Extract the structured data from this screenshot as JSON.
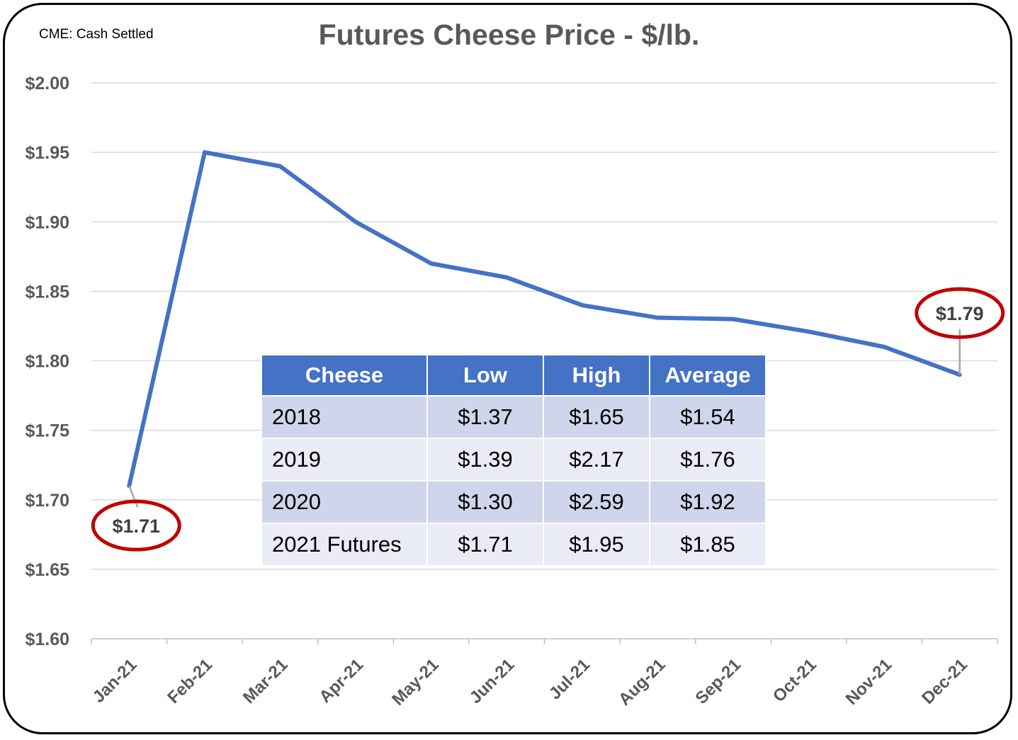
{
  "source_note": "CME: Cash Settled",
  "chart_data": {
    "type": "line",
    "title": "Futures Cheese Price - $/lb.",
    "categories": [
      "Jan-21",
      "Feb-21",
      "Mar-21",
      "Apr-21",
      "May-21",
      "Jun-21",
      "Jul-21",
      "Aug-21",
      "Sep-21",
      "Oct-21",
      "Nov-21",
      "Dec-21"
    ],
    "series": [
      {
        "name": "2021 Futures",
        "color": "#4472c4",
        "values": [
          1.71,
          1.95,
          1.94,
          1.9,
          1.87,
          1.86,
          1.84,
          1.831,
          1.83,
          1.821,
          1.81,
          1.79
        ]
      }
    ],
    "ylim": [
      1.6,
      2.0
    ],
    "yticks": [
      1.6,
      1.65,
      1.7,
      1.75,
      1.8,
      1.85,
      1.9,
      1.95,
      2.0
    ],
    "ytick_labels": [
      "$1.60",
      "$1.65",
      "$1.70",
      "$1.75",
      "$1.80",
      "$1.85",
      "$1.90",
      "$1.95",
      "$2.00"
    ],
    "grid": true,
    "annotations": [
      {
        "label": "$1.71",
        "category_index": 0,
        "value": 1.71,
        "circle_color": "#c00000"
      },
      {
        "label": "$1.79",
        "category_index": 11,
        "value": 1.79,
        "circle_color": "#c00000"
      }
    ]
  },
  "table": {
    "header_color": "#4472c4",
    "headers": [
      "Cheese",
      "Low",
      "High",
      "Average"
    ],
    "rows": [
      [
        "2018",
        "$1.37",
        "$1.65",
        "$1.54"
      ],
      [
        "2019",
        "$1.39",
        "$2.17",
        "$1.76"
      ],
      [
        "2020",
        "$1.30",
        "$2.59",
        "$1.92"
      ],
      [
        "2021 Futures",
        "$1.71",
        "$1.95",
        "$1.85"
      ]
    ]
  }
}
